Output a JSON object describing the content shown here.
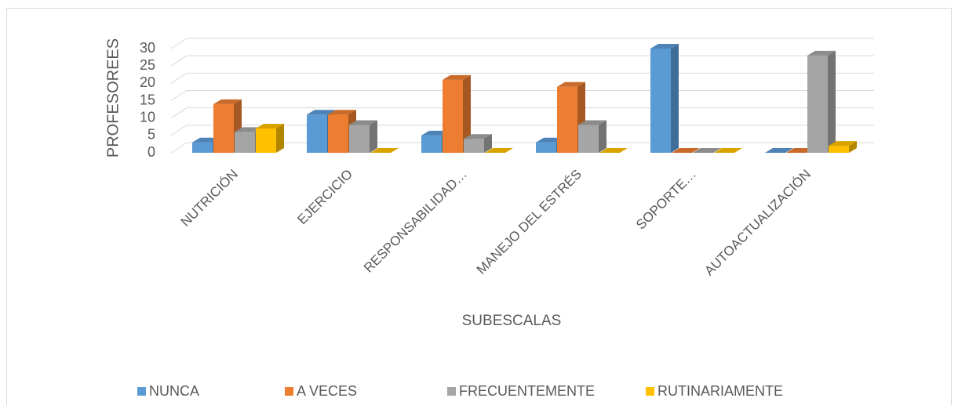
{
  "chart_data": {
    "type": "bar3d",
    "xlabel": "SUBESCALAS",
    "ylabel": "PROFESOREES",
    "categories": [
      "NUTRICIÓN",
      "EJERCICIO",
      "RESPONSABILIDAD…",
      "MANEJO DEL ESTRÉS",
      "SOPORTE…",
      "AUTOACTUALIZACIÓN"
    ],
    "series": [
      {
        "name": "NUNCA",
        "color": "#5b9bd5",
        "values": [
          3,
          11,
          5,
          3,
          30,
          0
        ]
      },
      {
        "name": "A VECES",
        "color": "#ed7d31",
        "values": [
          14,
          11,
          21,
          19,
          0,
          0
        ]
      },
      {
        "name": "FRECUENTEMENTE",
        "color": "#a5a5a5",
        "values": [
          6,
          8,
          4,
          8,
          0,
          28
        ]
      },
      {
        "name": "RUTINARIAMENTE",
        "color": "#ffc000",
        "values": [
          7,
          0,
          0,
          0,
          0,
          2
        ]
      }
    ],
    "ylim": [
      0,
      30
    ],
    "yticks": [
      0,
      5,
      10,
      15,
      20,
      25,
      30
    ],
    "grid": true,
    "legend": "bottom"
  }
}
